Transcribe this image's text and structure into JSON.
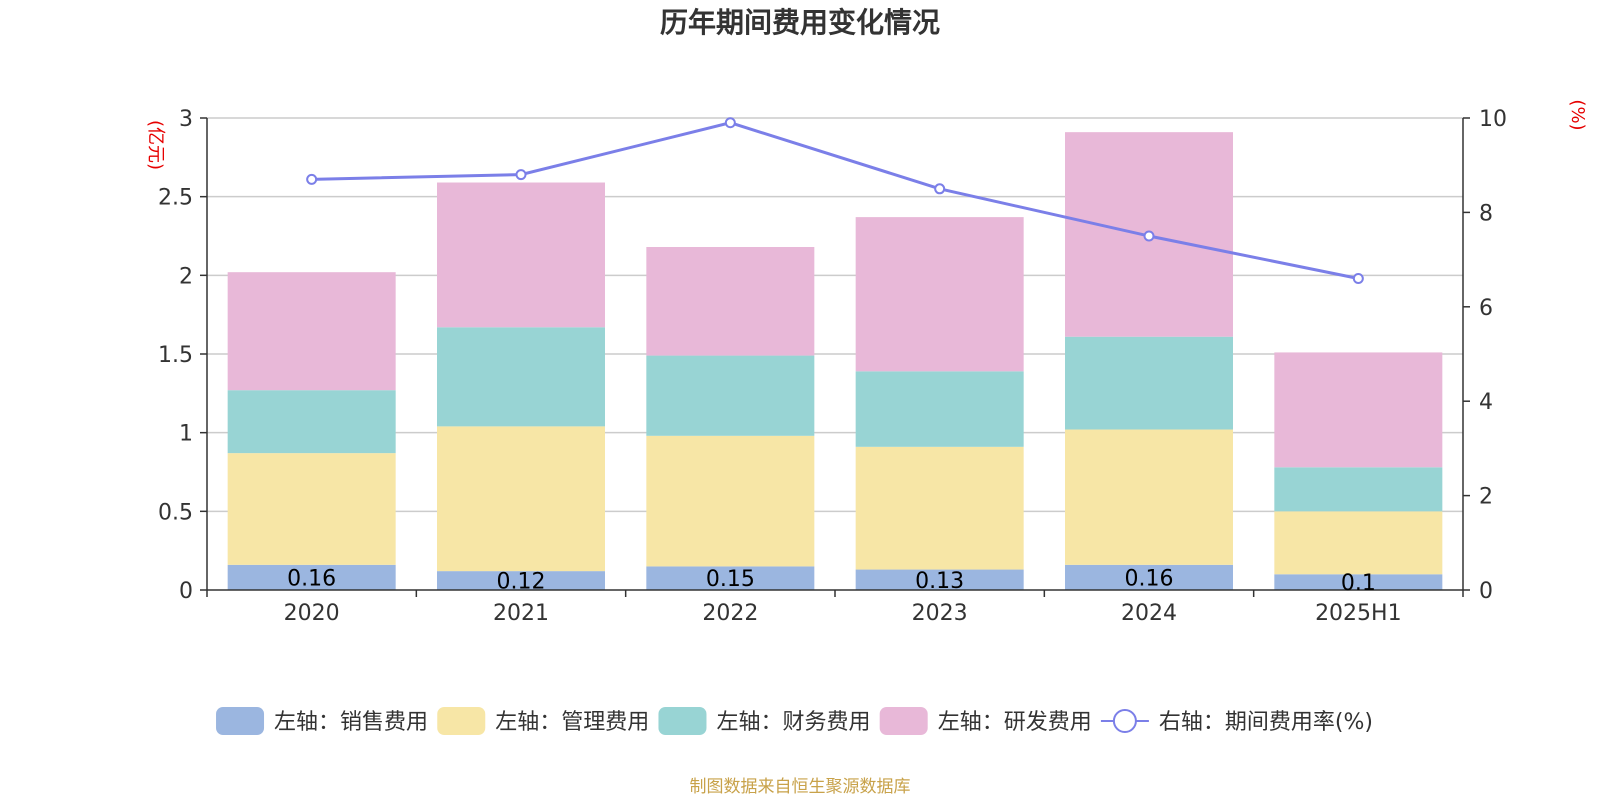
{
  "chart_data": {
    "type": "bar",
    "title": "历年期间费用变化情况",
    "left_unit": "(亿元)",
    "right_unit": "(%)",
    "categories": [
      "2020",
      "2021",
      "2022",
      "2023",
      "2024",
      "2025H1"
    ],
    "left_axis": {
      "ylim": [
        0,
        3
      ],
      "ticks": [
        "0",
        "0.5",
        "1",
        "1.5",
        "2",
        "2.5",
        "3"
      ]
    },
    "right_axis": {
      "ylim": [
        0,
        10
      ],
      "ticks": [
        "0",
        "2",
        "4",
        "6",
        "8",
        "10"
      ]
    },
    "grid": true,
    "legend_placement": "bottom",
    "stacked_series": [
      {
        "name": "左轴：销售费用",
        "color": "#9bb6e0",
        "values": [
          0.16,
          0.12,
          0.15,
          0.13,
          0.16,
          0.1
        ],
        "labels": [
          "0.16",
          "0.12",
          "0.15",
          "0.13",
          "0.16",
          "0.1"
        ]
      },
      {
        "name": "左轴：管理费用",
        "color": "#f7e6a6",
        "values": [
          0.71,
          0.92,
          0.83,
          0.78,
          0.86,
          0.4
        ]
      },
      {
        "name": "左轴：财务费用",
        "color": "#98d4d4",
        "values": [
          0.4,
          0.63,
          0.51,
          0.48,
          0.59,
          0.28
        ]
      },
      {
        "name": "左轴：研发费用",
        "color": "#e8b8d8",
        "values": [
          0.75,
          0.92,
          0.69,
          0.98,
          1.3,
          0.73
        ]
      }
    ],
    "line_series": {
      "name": "右轴：期间费用率(%)",
      "color": "#7b7fe8",
      "values": [
        8.7,
        8.8,
        9.9,
        8.5,
        7.5,
        6.6
      ]
    }
  },
  "source_text": "制图数据来自恒生聚源数据库"
}
